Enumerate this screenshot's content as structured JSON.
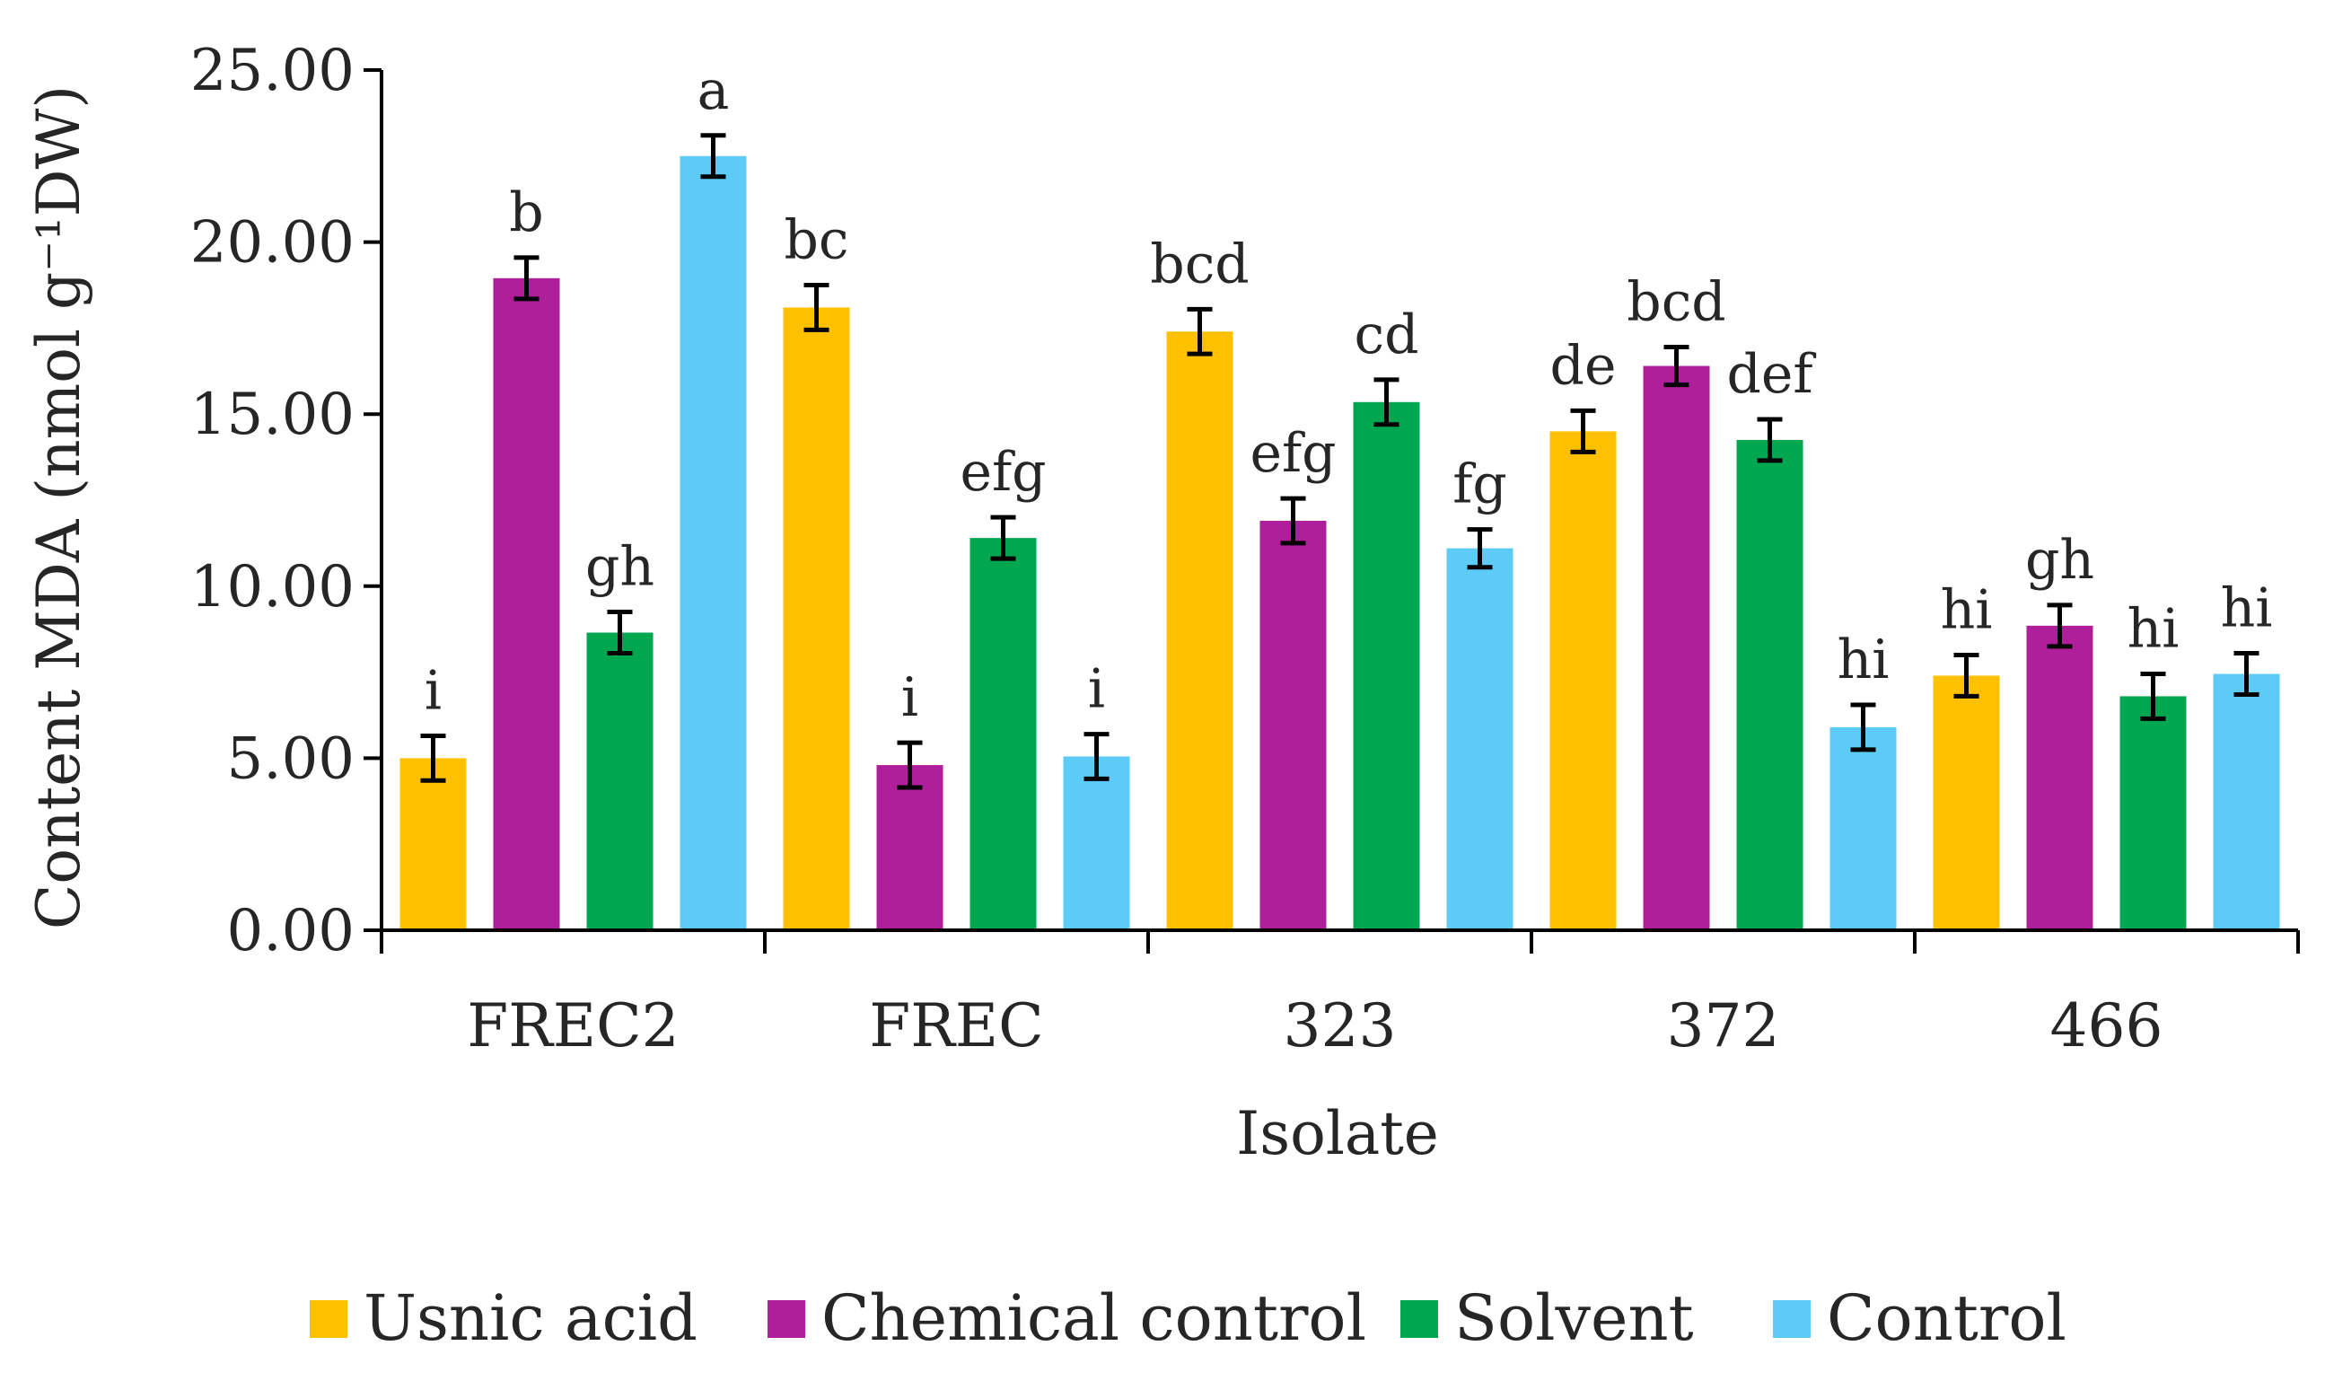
{
  "chart_data": {
    "type": "bar",
    "title": "",
    "xlabel": "Isolate",
    "ylabel": "Content MDA (nmol g⁻¹DW)",
    "ylim": [
      0,
      25
    ],
    "yticks": [
      "0.00",
      "5.00",
      "10.00",
      "15.00",
      "20.00",
      "25.00"
    ],
    "grid": false,
    "legend_position": "bottom",
    "categories": [
      "FREC2",
      "FREC",
      "323",
      "372",
      "466"
    ],
    "series": [
      {
        "name": "Usnic acid",
        "color": "#FFC000",
        "values": [
          5.0,
          18.1,
          17.4,
          14.5,
          7.4
        ],
        "errors": [
          0.65,
          0.65,
          0.65,
          0.6,
          0.6
        ],
        "labels": [
          "i",
          "bc",
          "bcd",
          "de",
          "hi"
        ]
      },
      {
        "name": "Chemical control",
        "color": "#B01F9B",
        "values": [
          18.95,
          4.8,
          11.9,
          16.4,
          8.85
        ],
        "errors": [
          0.6,
          0.65,
          0.65,
          0.55,
          0.6
        ],
        "labels": [
          "b",
          "i",
          "efg",
          "bcd",
          "gh"
        ]
      },
      {
        "name": "Solvent",
        "color": "#00A650",
        "values": [
          8.65,
          11.4,
          15.35,
          14.25,
          6.8
        ],
        "errors": [
          0.6,
          0.6,
          0.65,
          0.6,
          0.65
        ],
        "labels": [
          "gh",
          "efg",
          "cd",
          "def",
          "hi"
        ]
      },
      {
        "name": "Control",
        "color": "#5CCBF5",
        "values": [
          22.5,
          5.05,
          11.1,
          5.9,
          7.45
        ],
        "errors": [
          0.6,
          0.65,
          0.55,
          0.65,
          0.6
        ],
        "labels": [
          "a",
          "i",
          "fg",
          "hi",
          "hi"
        ]
      }
    ]
  }
}
